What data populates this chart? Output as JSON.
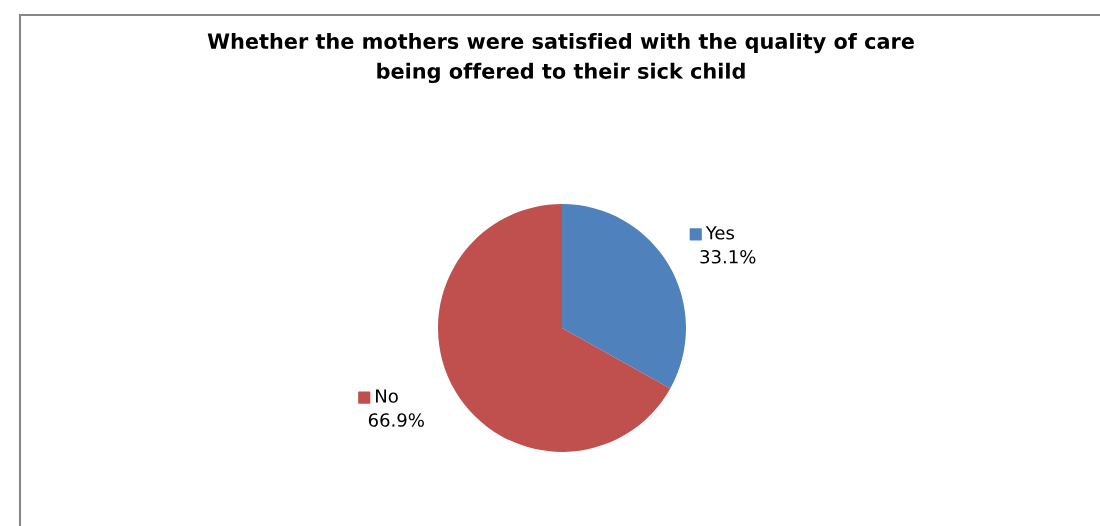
{
  "chart_data": {
    "type": "pie",
    "title": "Whether the mothers were satisfied with the quality of care\nbeing offered to their sick child",
    "categories": [
      "Yes",
      "No"
    ],
    "values": [
      33.1,
      66.9
    ],
    "colors": [
      "#4f81bd",
      "#c0504d"
    ],
    "value_labels": [
      "33.1%",
      "66.9%"
    ],
    "legend": "top left"
  }
}
